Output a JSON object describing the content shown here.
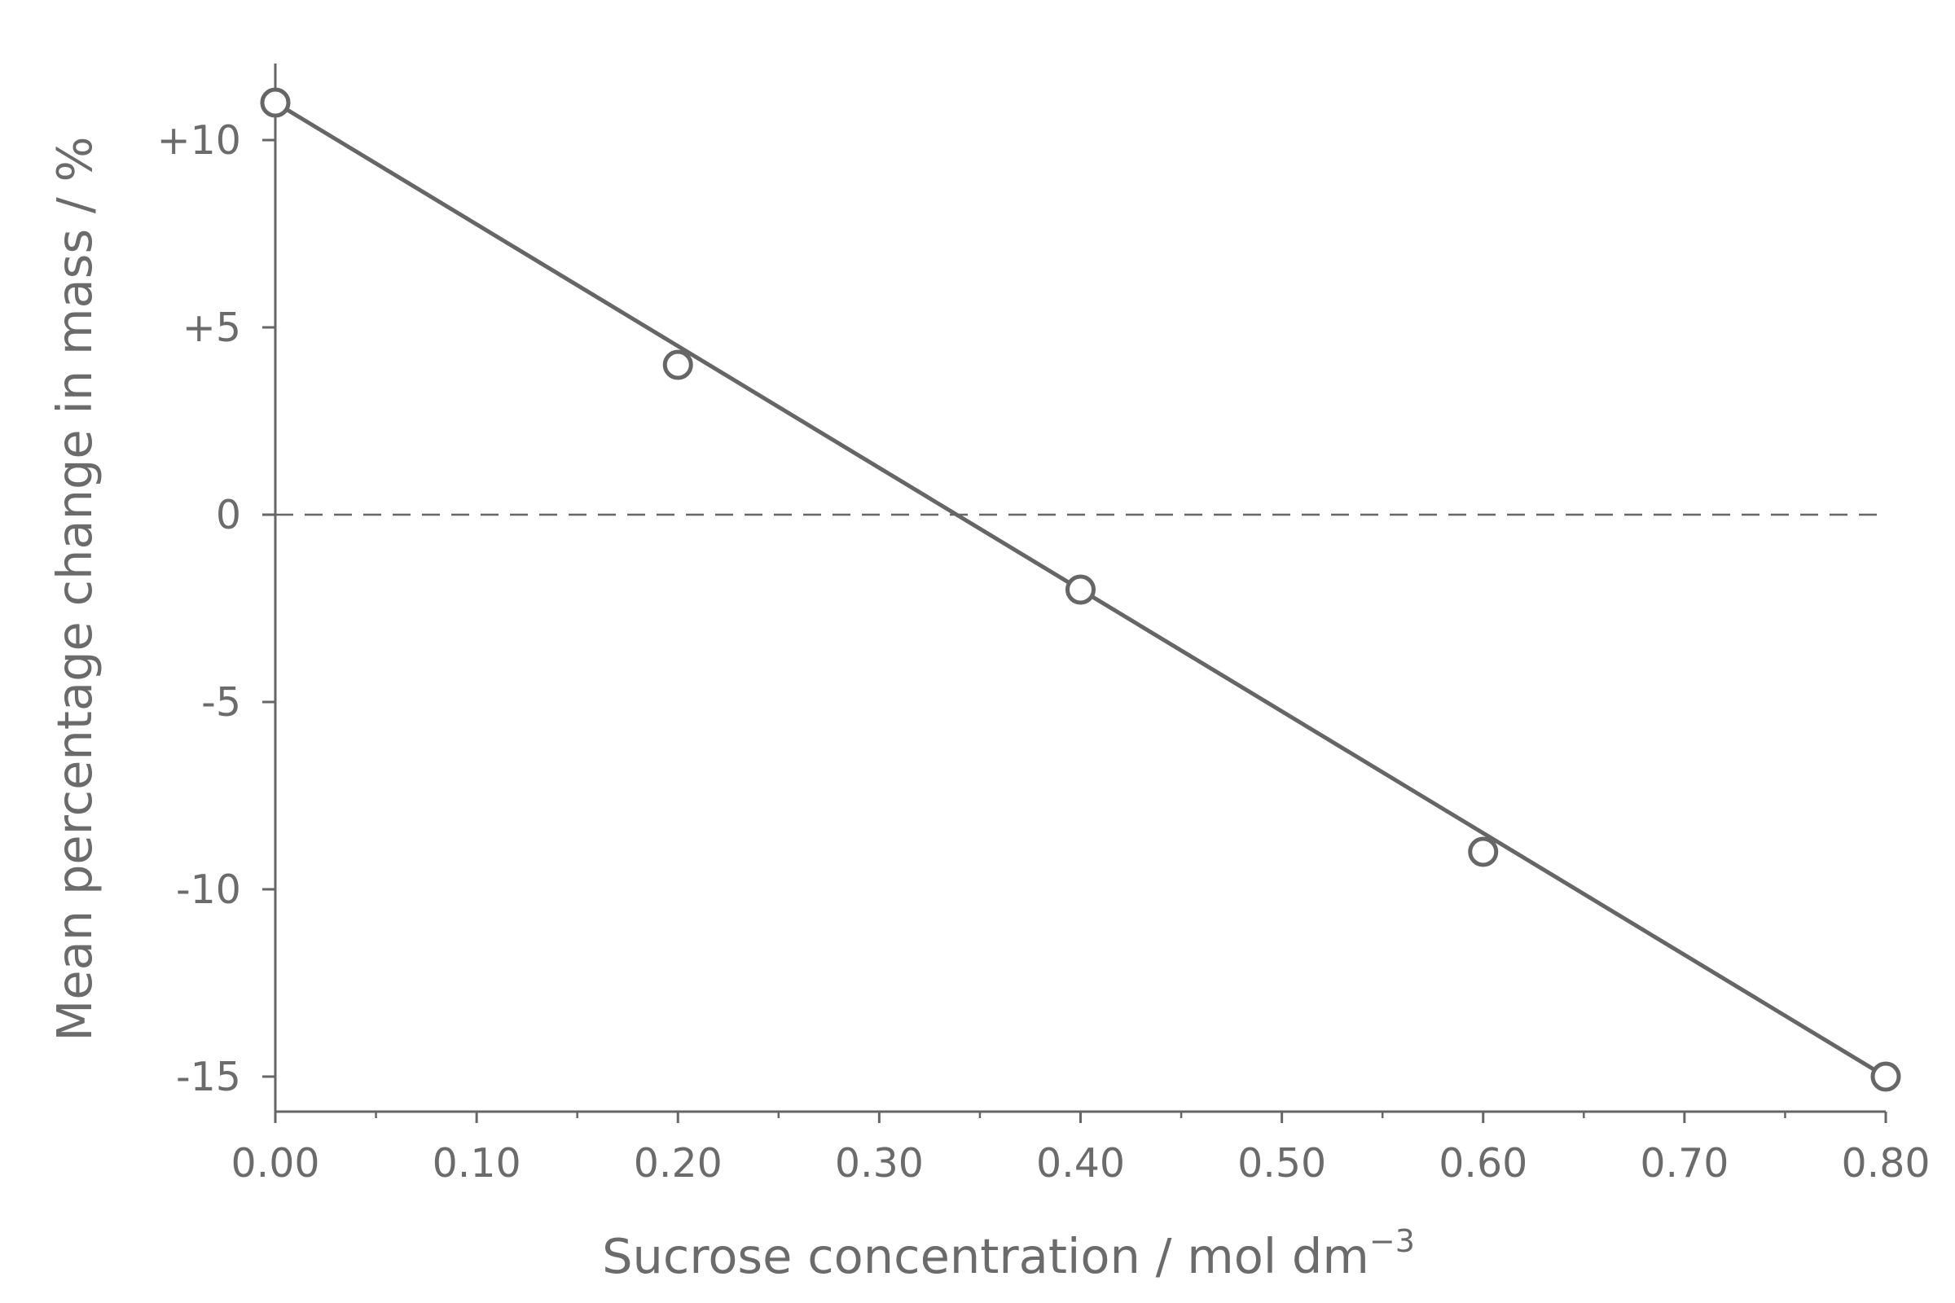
{
  "chart_data": {
    "type": "line",
    "xlabel": "Sucrose concentration / mol dm",
    "xlabel_superscript": "−3",
    "ylabel": "Mean percentage change in mass / %",
    "xlim": [
      0.0,
      0.8
    ],
    "ylim": [
      -16,
      12
    ],
    "x_ticks": [
      0.0,
      0.1,
      0.2,
      0.3,
      0.4,
      0.5,
      0.6,
      0.7,
      0.8
    ],
    "x_tick_labels": [
      "0.00",
      "0.10",
      "0.20",
      "0.30",
      "0.40",
      "0.50",
      "0.60",
      "0.70",
      "0.80"
    ],
    "x_minor_ticks": [
      0.05,
      0.15,
      0.25,
      0.35,
      0.45,
      0.55,
      0.65,
      0.75
    ],
    "y_ticks": [
      10,
      5,
      0,
      -5,
      -10,
      -15
    ],
    "y_tick_labels": [
      "+10",
      "+5",
      "0",
      "-5",
      "-10",
      "-15"
    ],
    "reference_line": {
      "y": 0,
      "style": "dashed"
    },
    "grid": false,
    "legend": false,
    "series": [
      {
        "x": [
          0.0,
          0.2,
          0.4,
          0.6,
          0.8
        ],
        "y": [
          11,
          4,
          -2,
          -9,
          -15
        ],
        "marker": "open-circle"
      }
    ],
    "line_of_best_fit": {
      "from": [
        0.0,
        11
      ],
      "to": [
        0.8,
        -15
      ]
    },
    "colors": {
      "ink": "#666666",
      "text": "#6b6b6b",
      "marker_fill": "#ffffff"
    }
  }
}
